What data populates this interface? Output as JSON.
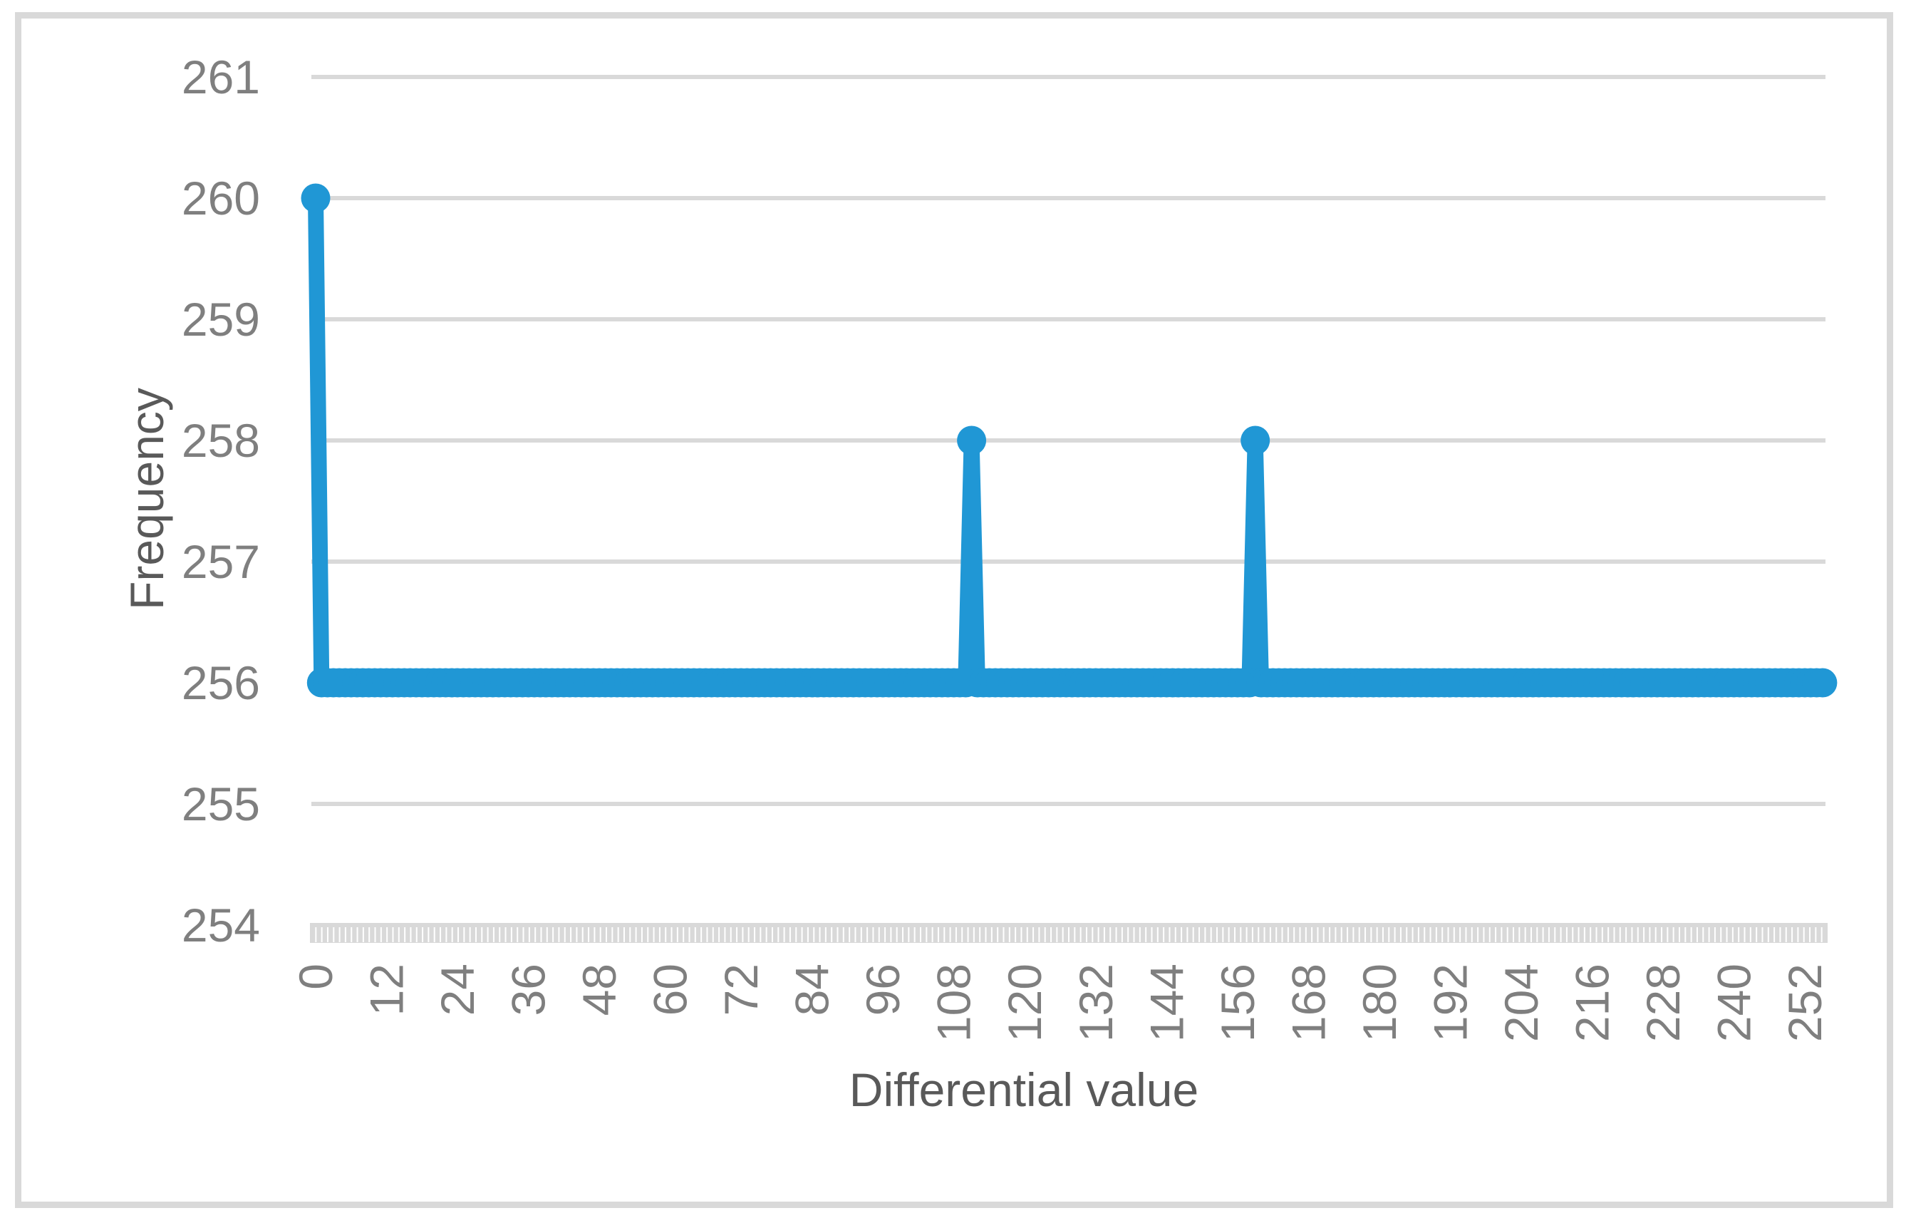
{
  "figure": {
    "background_color": "#FFFFFF",
    "border_color": "#D9D9D9"
  },
  "chart_data": {
    "type": "line",
    "title": "",
    "xlabel": "Differential value",
    "ylabel": "Frequency",
    "x_min": 0,
    "x_max": 255,
    "x_tick_interval": 12,
    "x_tick_labels": [
      "0",
      "12",
      "24",
      "36",
      "48",
      "60",
      "72",
      "84",
      "96",
      "108",
      "120",
      "132",
      "144",
      "156",
      "168",
      "180",
      "192",
      "204",
      "216",
      "228",
      "240",
      "252"
    ],
    "ylim": [
      254,
      261
    ],
    "y_tick_labels": [
      "261",
      "260",
      "259",
      "258",
      "257",
      "256",
      "255",
      "254"
    ],
    "baseline_value": 256,
    "spike_points": [
      {
        "x": 0,
        "y": 260
      },
      {
        "x": 111,
        "y": 258
      },
      {
        "x": 159,
        "y": 258
      }
    ],
    "series_rule": "every differential value from 0 to 255 has frequency 256 except the listed spike points",
    "legend": "none",
    "grid": "horizontal major gridlines at every integer frequency from 254 to 261",
    "marker": "filled-circle",
    "line_color": "#2097D5",
    "gridline_color": "#D9D9D9",
    "tick_band_color": "#D9D9D9",
    "tick_label_color": "#7F7F7F",
    "axis_title_color": "#595959"
  }
}
